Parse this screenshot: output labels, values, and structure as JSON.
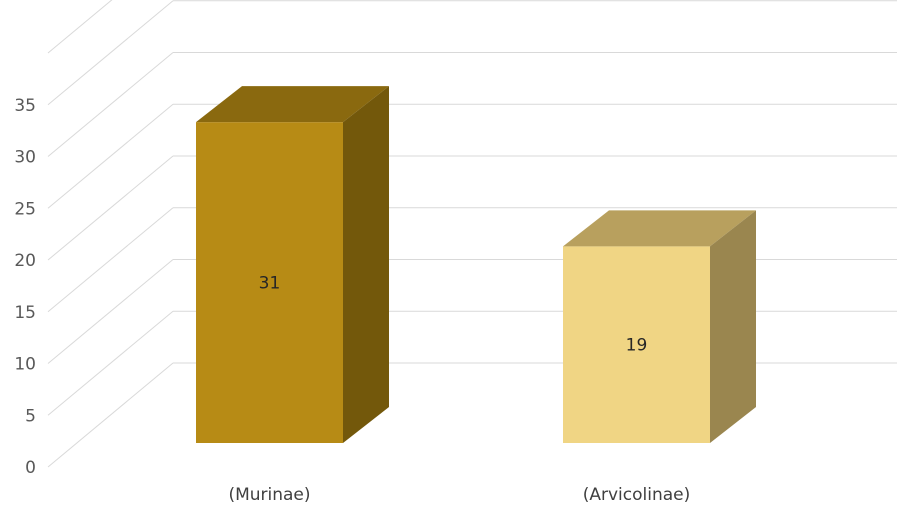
{
  "chart_data": {
    "type": "bar",
    "style": "3d-column",
    "categories": [
      "(Murinae)",
      "(Arvicolinae)"
    ],
    "values": [
      31,
      19
    ],
    "data_labels": [
      "31",
      "19"
    ],
    "title": "",
    "xlabel": "",
    "ylabel": "",
    "ylim": [
      0,
      35
    ],
    "yticks": [
      "0",
      "5",
      "10",
      "15",
      "20",
      "25",
      "30",
      "35"
    ],
    "grid": true,
    "legend": "none",
    "colors": {
      "bars": [
        {
          "front": "#b78b15",
          "top": "#8a690f",
          "side": "#73580b"
        },
        {
          "front": "#f0d584",
          "top": "#b8a05e",
          "side": "#9a864f"
        }
      ],
      "grid": "#d9d9d9",
      "tick_text": "#595959",
      "category_text": "#404040",
      "value_text": "#262626"
    }
  }
}
